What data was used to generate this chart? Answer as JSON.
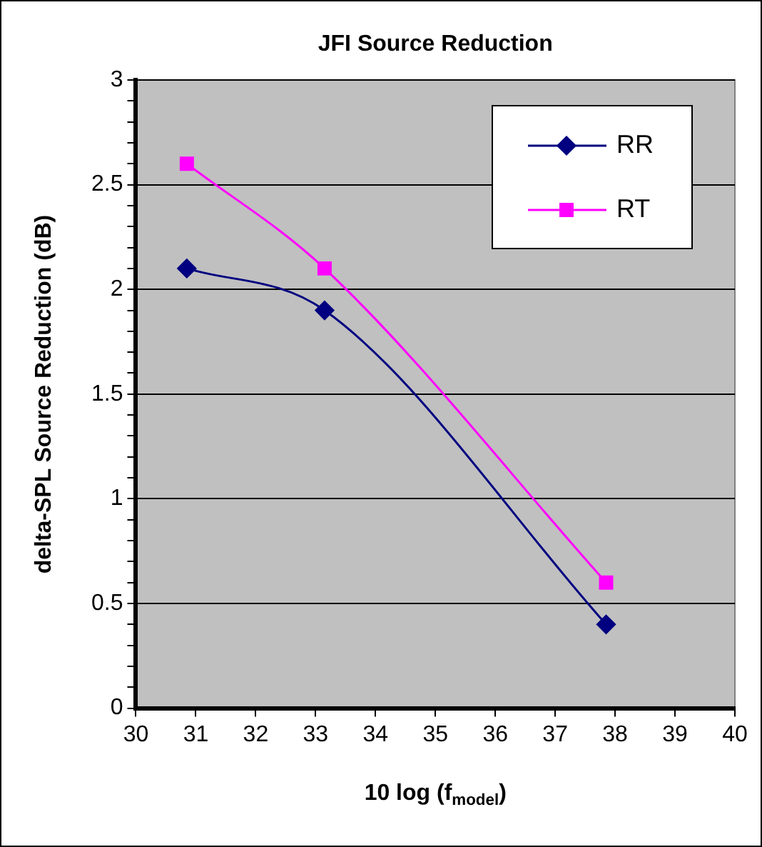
{
  "chart_data": {
    "type": "line",
    "title": "JFI Source Reduction",
    "xlabel": "10 log (f$_{model}$)",
    "ylabel": "delta-SPL Source Reduction (dB)",
    "x": [
      30.85,
      33.15,
      37.85
    ],
    "series": [
      {
        "name": "RR",
        "color": "#000080",
        "marker": "diamond",
        "values": [
          2.1,
          1.9,
          0.4
        ]
      },
      {
        "name": "RT",
        "color": "#ff00ff",
        "marker": "square",
        "values": [
          2.6,
          2.1,
          0.6
        ]
      }
    ],
    "xlim": [
      30,
      40
    ],
    "xticks": [
      30,
      31,
      32,
      33,
      34,
      35,
      36,
      37,
      38,
      39,
      40
    ],
    "ylim": [
      0,
      3
    ],
    "yticks": [
      0,
      {
        "value": 0.1,
        "label": null
      },
      {
        "value": 0.2,
        "label": null
      },
      {
        "value": 0.3,
        "label": null
      },
      {
        "value": 0.4,
        "label": null
      },
      0.5,
      {
        "value": 0.6,
        "label": null
      },
      {
        "value": 0.7,
        "label": null
      },
      {
        "value": 0.8,
        "label": null
      },
      {
        "value": 0.9,
        "label": null
      },
      1,
      {
        "value": 1.1,
        "label": null
      },
      {
        "value": 1.2,
        "label": null
      },
      {
        "value": 1.3,
        "label": null
      },
      {
        "value": 1.4,
        "label": null
      },
      1.5,
      {
        "value": 1.6,
        "label": null
      },
      {
        "value": 1.7,
        "label": null
      },
      {
        "value": 1.8,
        "label": null
      },
      {
        "value": 1.9,
        "label": null
      },
      2,
      {
        "value": 2.1,
        "label": null
      },
      {
        "value": 2.2,
        "label": null
      },
      {
        "value": 2.3,
        "label": null
      },
      {
        "value": 2.4,
        "label": null
      },
      2.5,
      {
        "value": 2.6,
        "label": null
      },
      {
        "value": 2.7,
        "label": null
      },
      {
        "value": 2.8,
        "label": null
      },
      {
        "value": 2.9,
        "label": null
      },
      3
    ],
    "grid": "y",
    "legend": "top right",
    "line_style": "solid"
  }
}
